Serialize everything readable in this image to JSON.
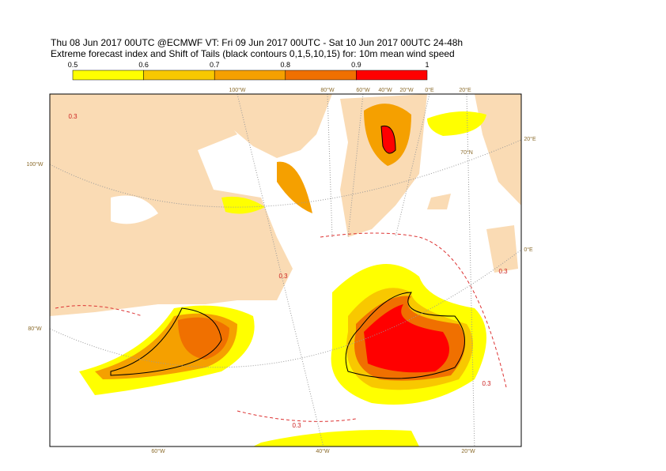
{
  "header": {
    "title": "Thu 08 Jun 2017 00UTC @ECMWF VT: Fri 09 Jun 2017 00UTC - Sat 10 Jun 2017 00UTC  24-48h",
    "subtitle": "Extreme forecast index and Shift of Tails (black contours 0,1,5,10,15) for: 10m mean wind speed"
  },
  "colorbar": {
    "ticks": [
      0.5,
      0.6,
      0.7,
      0.8,
      0.9,
      1
    ],
    "colors": [
      "#ffff00",
      "#f8c800",
      "#f5a000",
      "#f07000",
      "#ff0000"
    ]
  },
  "map": {
    "top_labels": [
      "100°W",
      "80°W",
      "60°W",
      "40°W",
      "20°W",
      "0°E",
      "20°E"
    ],
    "right_labels": [
      "70°N",
      "20°E",
      "0°E"
    ],
    "left_labels": [
      "100°W",
      "80°W"
    ],
    "bottom_labels": [
      "60°W",
      "40°W",
      "20°W"
    ],
    "contour_labels": [
      "0.3",
      "0.3",
      "0.3",
      "0.3",
      "0.3"
    ]
  }
}
